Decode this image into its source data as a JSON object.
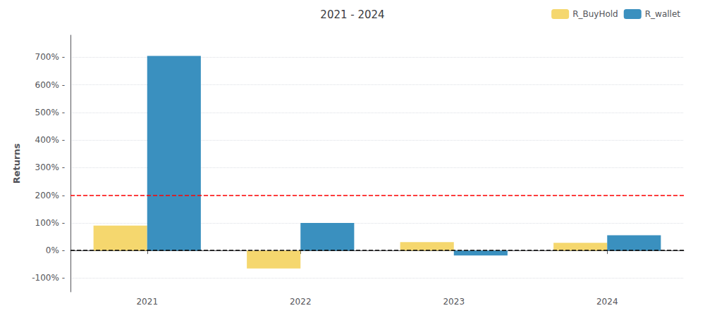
{
  "chart_data": {
    "type": "bar",
    "title": "2021 - 2024",
    "ylabel": "Returns",
    "categories": [
      "2021",
      "2022",
      "2023",
      "2024"
    ],
    "series": [
      {
        "name": "R_BuyHold",
        "color": "#F5D76E",
        "values": [
          0.9,
          -0.65,
          0.3,
          0.28
        ]
      },
      {
        "name": "R_wallet",
        "color": "#3A90BF",
        "values": [
          7.05,
          1.0,
          -0.18,
          0.55
        ]
      }
    ],
    "hlines": [
      {
        "value": 0.0,
        "color": "black",
        "line_style": "dashed"
      },
      {
        "value": 2.0,
        "color": "red",
        "line_style": "dashed"
      }
    ],
    "ylim": [
      -1.5,
      7.8
    ],
    "yticks": [
      {
        "value": -1.0,
        "label": "-100% -"
      },
      {
        "value": 0.0,
        "label": "0% -"
      },
      {
        "value": 1.0,
        "label": "100% -"
      },
      {
        "value": 2.0,
        "label": "200% -"
      },
      {
        "value": 3.0,
        "label": "300% -"
      },
      {
        "value": 4.0,
        "label": "400% -"
      },
      {
        "value": 5.0,
        "label": "500% -"
      },
      {
        "value": 6.0,
        "label": "600% -"
      },
      {
        "value": 7.0,
        "label": "700% -"
      }
    ],
    "grid": true,
    "legend": "upper right"
  }
}
